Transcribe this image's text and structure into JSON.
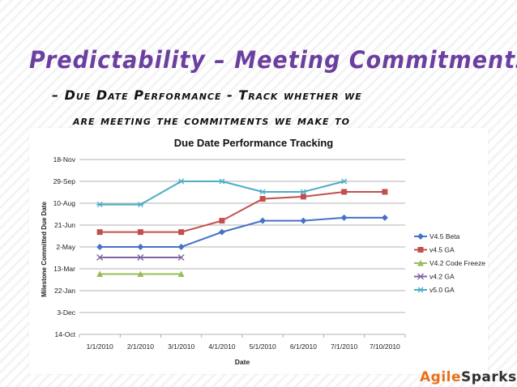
{
  "slide": {
    "title": "Predictability – Meeting Commitments",
    "subtitle_line1": "– Due Date Performance - Track whether we",
    "subtitle_line2": "are meeting the commitments we make to",
    "brand_prefix": "Agile",
    "brand_suffix": "Sparks"
  },
  "chart_data": {
    "type": "line",
    "title": "Due Date Performance Tracking",
    "xlabel": "Date",
    "ylabel": "Milestone Committed Due Date",
    "categories": [
      "1/1/2010",
      "2/1/2010",
      "3/1/2010",
      "4/1/2010",
      "5/1/2010",
      "6/1/2010",
      "7/1/2010",
      "7/10/2010"
    ],
    "y_ticks": [
      "14-Oct",
      "3-Dec",
      "22-Jan",
      "13-Mar",
      "2-May",
      "21-Jun",
      "10-Aug",
      "29-Sep",
      "18-Nov"
    ],
    "ylim": [
      "2009-10-14",
      "2010-11-18"
    ],
    "grid": true,
    "legend": "right",
    "series": [
      {
        "name": "V4.5 Beta",
        "color": "#4472c4",
        "marker": "diamond",
        "values": [
          "2010-05-02",
          "2010-05-02",
          "2010-05-02",
          "2010-06-05",
          "2010-07-01",
          "2010-07-01",
          "2010-07-08",
          "2010-07-08"
        ]
      },
      {
        "name": "v4.5 GA",
        "color": "#c0504d",
        "marker": "square",
        "values": [
          "2010-06-05",
          "2010-06-05",
          "2010-06-05",
          "2010-07-01",
          "2010-08-20",
          "2010-08-25",
          "2010-09-05",
          "2010-09-05"
        ]
      },
      {
        "name": "V4.2 Code Freeze",
        "color": "#9bbb59",
        "marker": "triangle",
        "values": [
          "2010-03-01",
          "2010-03-01",
          "2010-03-01",
          null,
          null,
          null,
          null,
          null
        ]
      },
      {
        "name": "v4.2 GA",
        "color": "#8064a2",
        "marker": "x",
        "values": [
          "2010-04-08",
          "2010-04-08",
          "2010-04-08",
          null,
          null,
          null,
          null,
          null
        ]
      },
      {
        "name": "v5.0 GA",
        "color": "#4bacc6",
        "marker": "star",
        "values": [
          "2010-08-07",
          "2010-08-07",
          "2010-09-29",
          "2010-09-29",
          "2010-09-05",
          "2010-09-05",
          "2010-09-29",
          null
        ]
      }
    ]
  }
}
